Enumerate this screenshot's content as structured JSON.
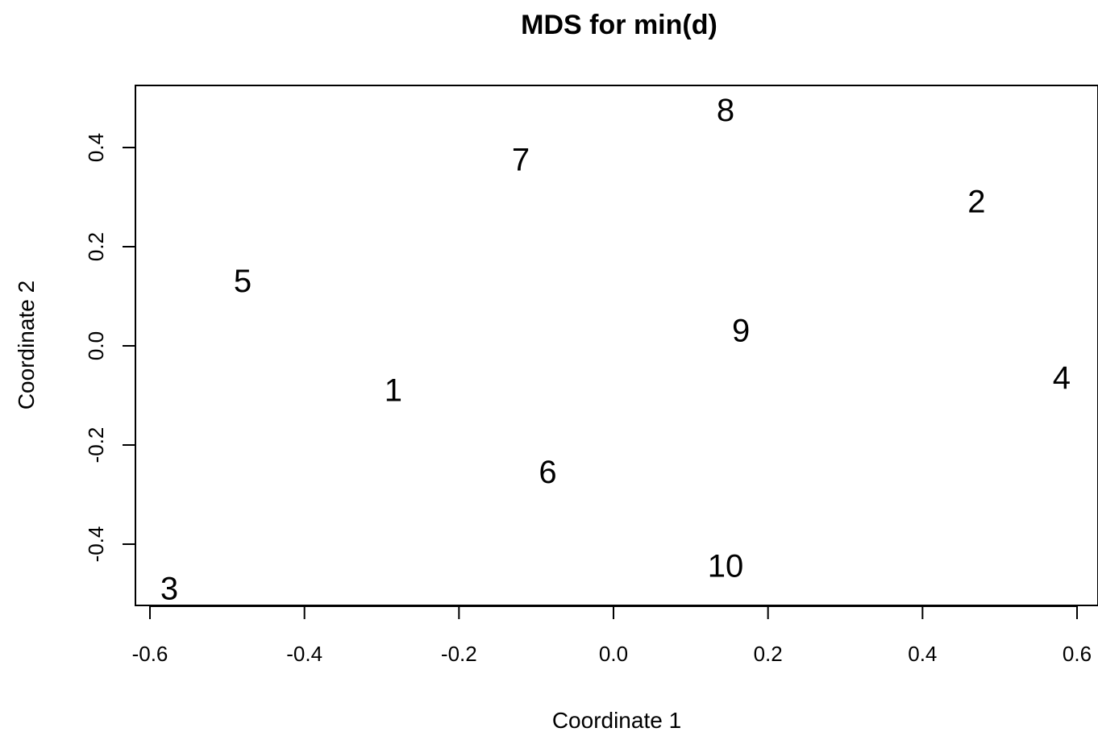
{
  "chart_data": {
    "type": "scatter",
    "title": "MDS for min(d)",
    "xlabel": "Coordinate 1",
    "ylabel": "Coordinate 2",
    "xlim": [
      -0.6,
      0.6
    ],
    "ylim": [
      -0.4,
      0.4
    ],
    "x_ticks": [
      "-0.6",
      "-0.4",
      "-0.2",
      "0.0",
      "0.2",
      "0.4",
      "0.6"
    ],
    "y_ticks": [
      "-0.4",
      "-0.2",
      "0.0",
      "0.2",
      "0.4"
    ],
    "grid": false,
    "points": [
      {
        "label": "1",
        "x": -0.285,
        "y": -0.09
      },
      {
        "label": "2",
        "x": 0.47,
        "y": 0.29
      },
      {
        "label": "3",
        "x": -0.575,
        "y": -0.49
      },
      {
        "label": "4",
        "x": 0.58,
        "y": -0.065
      },
      {
        "label": "5",
        "x": -0.48,
        "y": 0.13
      },
      {
        "label": "6",
        "x": -0.085,
        "y": -0.255
      },
      {
        "label": "7",
        "x": -0.12,
        "y": 0.375
      },
      {
        "label": "8",
        "x": 0.145,
        "y": 0.475
      },
      {
        "label": "9",
        "x": 0.165,
        "y": 0.03
      },
      {
        "label": "10",
        "x": 0.145,
        "y": -0.445
      }
    ]
  }
}
